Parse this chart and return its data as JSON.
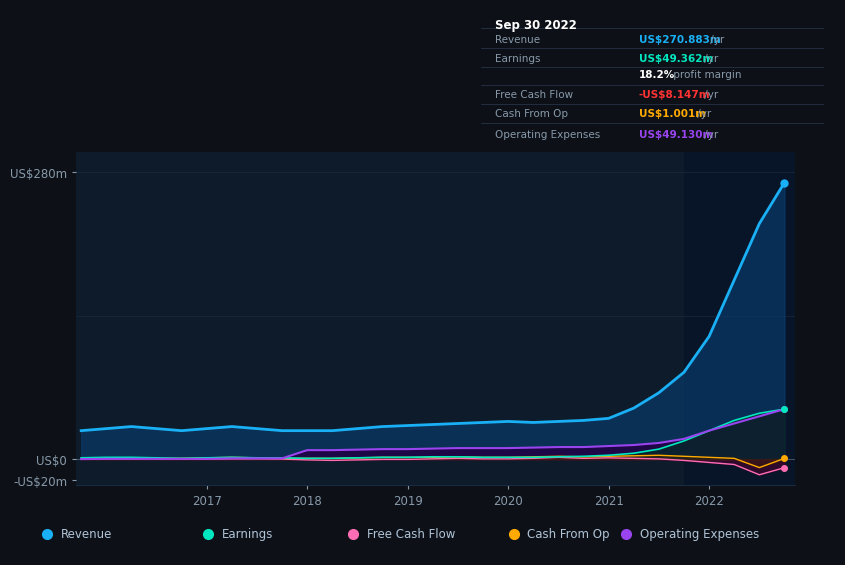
{
  "bg_color": "#0d1117",
  "plot_bg_color": "#0d1b2a",
  "highlight_bg_color": "#081428",
  "grid_color": "#1a2a40",
  "text_color": "#8899aa",
  "white_color": "#ffffff",
  "ylim": [
    -25,
    300
  ],
  "ymin": -25,
  "ymax": 300,
  "xmin": 2015.7,
  "xmax": 2022.85,
  "highlight_x_start": 2021.75,
  "ytick_vals": [
    -20,
    0,
    280
  ],
  "ytick_labels": [
    "-US$20m",
    "US$0",
    "US$280m"
  ],
  "xtick_vals": [
    2017,
    2018,
    2019,
    2020,
    2021,
    2022
  ],
  "series": {
    "revenue": {
      "color": "#1ab0f5",
      "fill": "#0a3a6a",
      "label": "Revenue"
    },
    "earnings": {
      "color": "#00e8c0",
      "fill": "#003322",
      "label": "Earnings"
    },
    "free_cash_flow": {
      "color": "#ff6eb4",
      "fill": "#550030",
      "label": "Free Cash Flow"
    },
    "cash_from_op": {
      "color": "#ffaa00",
      "fill": "#442200",
      "label": "Cash From Op"
    },
    "operating_expenses": {
      "color": "#9944ee",
      "fill": "#220044",
      "label": "Operating Expenses"
    }
  },
  "info_box": {
    "title": "Sep 30 2022",
    "bg": "#050a0f",
    "border": "#2a3a50",
    "rows": [
      {
        "label": "Revenue",
        "value": "US$270.883m",
        "vcolor": "#1ab0f5",
        "suffix": " /yr"
      },
      {
        "label": "Earnings",
        "value": "US$49.362m",
        "vcolor": "#00e8c0",
        "suffix": " /yr"
      },
      {
        "label": "",
        "value": "18.2%",
        "vcolor": "#ffffff",
        "suffix": " profit margin"
      },
      {
        "label": "Free Cash Flow",
        "value": "-US$8.147m",
        "vcolor": "#ff3333",
        "suffix": " /yr"
      },
      {
        "label": "Cash From Op",
        "value": "US$1.001m",
        "vcolor": "#ffaa00",
        "suffix": " /yr"
      },
      {
        "label": "Operating Expenses",
        "value": "US$49.130m",
        "vcolor": "#9944ee",
        "suffix": " /yr"
      }
    ]
  },
  "legend": [
    {
      "label": "Revenue",
      "color": "#1ab0f5"
    },
    {
      "label": "Earnings",
      "color": "#00e8c0"
    },
    {
      "label": "Free Cash Flow",
      "color": "#ff6eb4"
    },
    {
      "label": "Cash From Op",
      "color": "#ffaa00"
    },
    {
      "label": "Operating Expenses",
      "color": "#9944ee"
    }
  ]
}
